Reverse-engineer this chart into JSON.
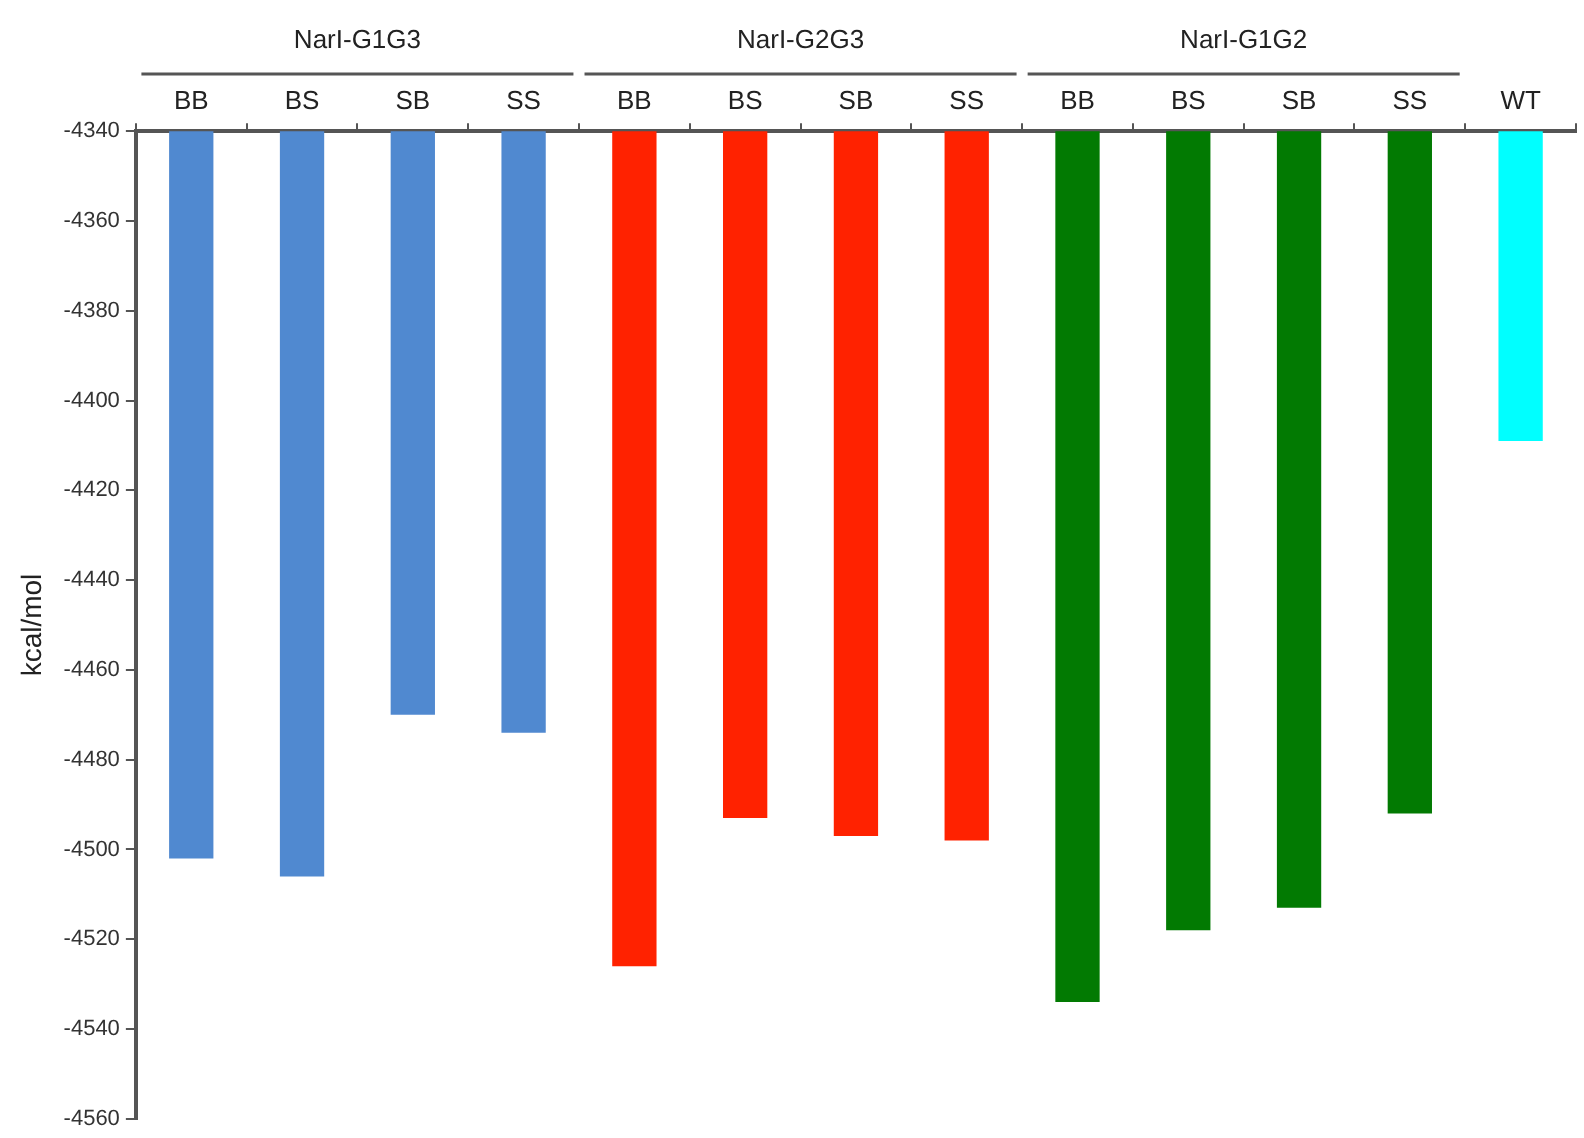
{
  "chart_data": {
    "type": "bar",
    "ylabel": "kcal/mol",
    "categories": [
      "BB",
      "BS",
      "SB",
      "SS",
      "BB",
      "BS",
      "SB",
      "SS",
      "BB",
      "BS",
      "SB",
      "SS",
      "WT"
    ],
    "values": [
      -4502,
      -4506,
      -4470,
      -4474,
      -4526,
      -4493,
      -4497,
      -4498,
      -4534,
      -4518,
      -4513,
      -4492,
      -4409
    ],
    "colors": [
      "#5089d0",
      "#5089d0",
      "#5089d0",
      "#5089d0",
      "#ff2200",
      "#ff2200",
      "#ff2200",
      "#ff2200",
      "#027a02",
      "#027a02",
      "#027a02",
      "#027a02",
      "#00ffff"
    ],
    "annotations": [
      "NarI-G1G3",
      "NarI-G2G3",
      "NarI-G1G2"
    ],
    "ylim": [
      -4560,
      -4340
    ],
    "yticks": [
      -4340,
      -4360,
      -4380,
      -4400,
      -4420,
      -4440,
      -4460,
      -4480,
      -4500,
      -4520,
      -4540,
      -4560
    ],
    "grid": false,
    "legend": false
  }
}
